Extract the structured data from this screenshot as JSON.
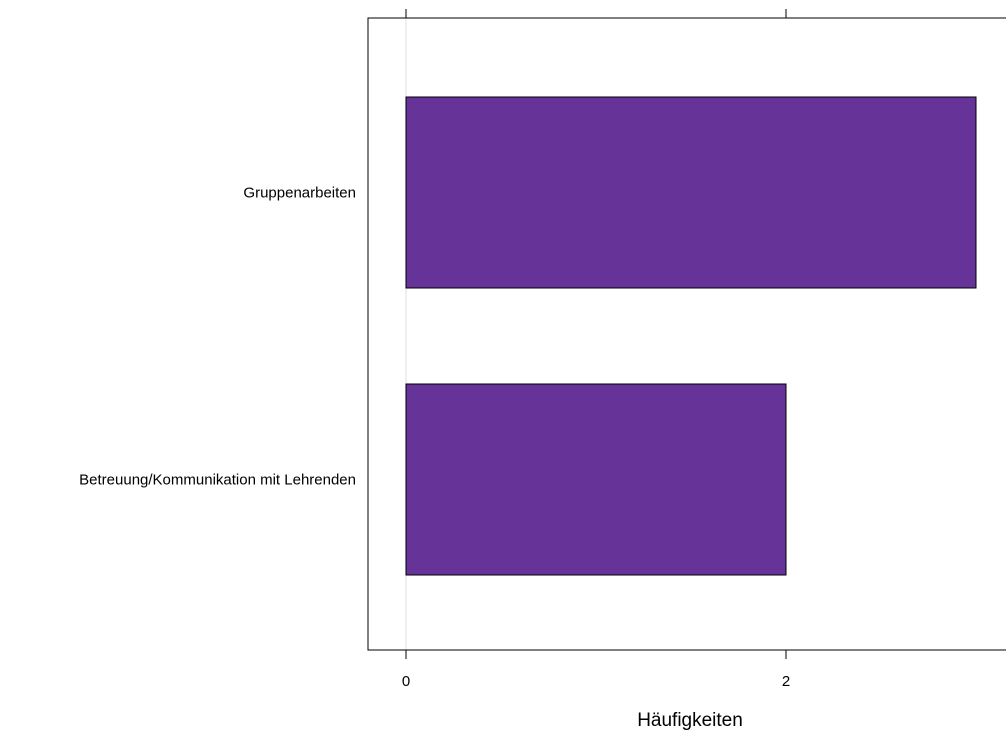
{
  "chart_data": {
    "type": "bar",
    "orientation": "horizontal",
    "categories": [
      "Gruppenarbeiten",
      "Betreuung/Kommunikation mit Lehrenden"
    ],
    "values": [
      3,
      2
    ],
    "xlabel": "Häufigkeiten",
    "ylabel": "",
    "xlim": [
      -0.2,
      3.15
    ],
    "xticks": [
      0,
      2
    ],
    "grid": true,
    "bar_color": "#663399",
    "bar_edge_color": "#000000",
    "grid_color": "#e6e6e6"
  }
}
